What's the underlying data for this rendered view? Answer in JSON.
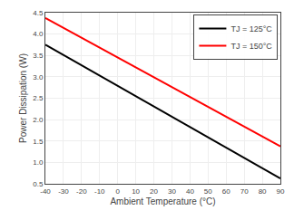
{
  "chart_data": {
    "type": "line",
    "xlabel": "Ambient Temperature (°C)",
    "ylabel": "Power Dissipation (W)",
    "xlim": [
      -40,
      90
    ],
    "ylim": [
      0.5,
      4.5
    ],
    "xticks": [
      -40,
      -30,
      -20,
      -10,
      0,
      10,
      20,
      30,
      40,
      50,
      60,
      70,
      80,
      90
    ],
    "yticks": [
      0.5,
      {
        "value": 1,
        "label": "1.0"
      },
      1.5,
      {
        "value": 2,
        "label": "2.0"
      },
      2.5,
      {
        "value": 3,
        "label": "3.0"
      },
      3.5,
      {
        "value": 4,
        "label": "4.0"
      },
      4.5
    ],
    "series": [
      {
        "name": "TJ = 125°C",
        "color": "#000000",
        "x": [
          -40,
          90
        ],
        "values": [
          3.75,
          0.625
        ]
      },
      {
        "name": "TJ = 150°C",
        "color": "#ff0000",
        "x": [
          -40,
          90
        ],
        "values": [
          4.375,
          1.375
        ]
      }
    ],
    "grid": true,
    "legend": "upper right"
  }
}
